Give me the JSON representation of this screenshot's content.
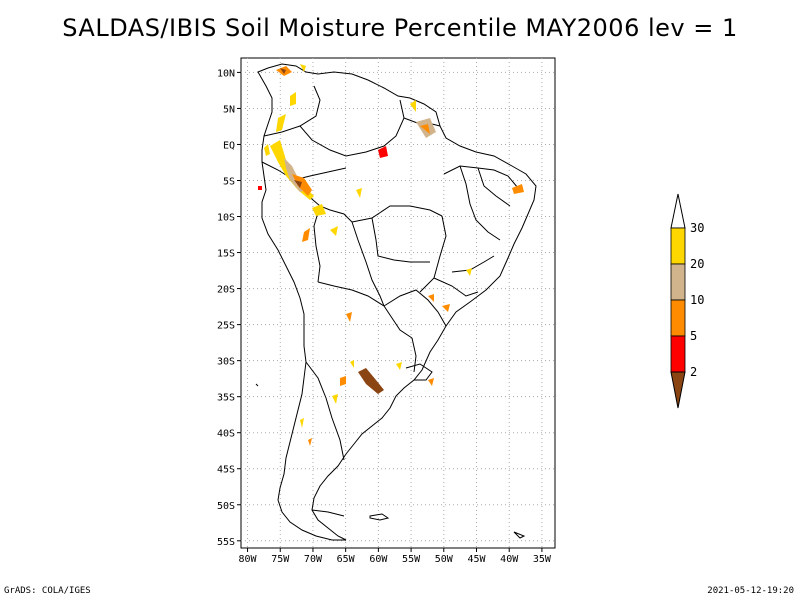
{
  "title": "SALDAS/IBIS Soil Moisture Percentile MAY2006 lev = 1",
  "footer": {
    "left": "GrADS: COLA/IGES",
    "right": "2021-05-12-19:20"
  },
  "axes": {
    "lat_labels": [
      "10N",
      "5N",
      "EQ",
      "5S",
      "10S",
      "15S",
      "20S",
      "25S",
      "30S",
      "35S",
      "40S",
      "45S",
      "50S",
      "55S"
    ],
    "lat_values": [
      10,
      5,
      0,
      -5,
      -10,
      -15,
      -20,
      -25,
      -30,
      -35,
      -40,
      -45,
      -50,
      -55
    ],
    "lon_labels": [
      "80W",
      "75W",
      "70W",
      "65W",
      "60W",
      "55W",
      "50W",
      "45W",
      "40W",
      "35W"
    ],
    "lon_values": [
      -80,
      -75,
      -70,
      -65,
      -60,
      -55,
      -50,
      -45,
      -40,
      -35
    ],
    "lat_range": [
      -56,
      12
    ],
    "lon_range": [
      -81,
      -33
    ],
    "grid": "dotted"
  },
  "legend": {
    "labels": [
      "2",
      "5",
      "10",
      "20",
      "30"
    ],
    "colors": [
      "#8b4513",
      "#ff0000",
      "#ff8c00",
      "#d2b48c",
      "#ffd700"
    ],
    "cap_top_color": "#ffffff",
    "cap_bottom_color": "#8b4513"
  },
  "colors": {
    "coast": "#000000",
    "grid": "#aaaaaa"
  }
}
